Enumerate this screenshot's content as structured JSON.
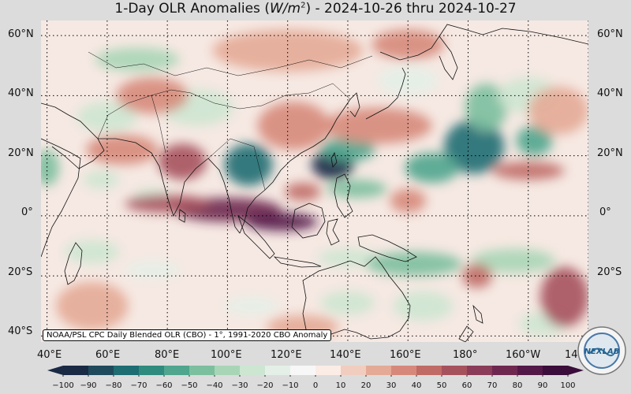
{
  "title": {
    "prefix": "1-Day OLR Anomalies (",
    "unit_var": "W/m",
    "unit_exp": "2",
    "suffix": ") - 2024-10-26 thru 2024-10-27"
  },
  "credit": "NOAA/PSL CPC Daily Blended OLR (CBO) - 1°, 1991-2020 CBO Anomaly",
  "lat_labels": [
    "60°N",
    "40°N",
    "20°N",
    "0°",
    "20°S",
    "40°S"
  ],
  "lon_labels": [
    "40°E",
    "60°E",
    "80°E",
    "100°E",
    "120°E",
    "140°E",
    "160°E",
    "180°",
    "160°W",
    "14"
  ],
  "logo_text": "NEXLAB",
  "colorbar": {
    "ticks": [
      "−100",
      "−90",
      "−80",
      "−70",
      "−60",
      "−50",
      "−40",
      "−30",
      "−20",
      "−10",
      "0",
      "10",
      "20",
      "30",
      "40",
      "50",
      "60",
      "70",
      "80",
      "90",
      "100"
    ],
    "colors": [
      "#1a2a45",
      "#1f4a5c",
      "#1d6d72",
      "#2e8b7e",
      "#4fa58e",
      "#7cbf9f",
      "#a8d5b6",
      "#cde6d2",
      "#e4f0e7",
      "#f7f7f7",
      "#fbece6",
      "#f1cdbf",
      "#e4aa96",
      "#d6897a",
      "#c06b66",
      "#a6525d",
      "#8a3c58",
      "#6e2850",
      "#531848",
      "#3a0d3a"
    ]
  },
  "map": {
    "lon_range": [
      38,
      220
    ],
    "lat_range": [
      -42,
      65
    ],
    "gridlines": "dotted",
    "anomalies": [
      {
        "kind": "wet",
        "lon": 135,
        "lat": 17,
        "rx": 7,
        "ry": 5,
        "v": -95
      },
      {
        "kind": "wet",
        "lon": 140,
        "lat": 22,
        "rx": 9,
        "ry": 4,
        "v": -60
      },
      {
        "kind": "wet",
        "lon": 143,
        "lat": 9,
        "rx": 10,
        "ry": 3,
        "v": -50
      },
      {
        "kind": "wet",
        "lon": 107,
        "lat": 17,
        "rx": 8,
        "ry": 7,
        "v": -75
      },
      {
        "kind": "wet",
        "lon": 182,
        "lat": 23,
        "rx": 10,
        "ry": 9,
        "v": -80
      },
      {
        "kind": "wet",
        "lon": 168,
        "lat": 16,
        "rx": 9,
        "ry": 5,
        "v": -60
      },
      {
        "kind": "wet",
        "lon": 202,
        "lat": 25,
        "rx": 6,
        "ry": 5,
        "v": -55
      },
      {
        "kind": "wet",
        "lon": 186,
        "lat": 36,
        "rx": 7,
        "ry": 8,
        "v": -45
      },
      {
        "kind": "wet",
        "lon": 200,
        "lat": 40,
        "rx": 10,
        "ry": 6,
        "v": -30
      },
      {
        "kind": "wet",
        "lon": 70,
        "lat": 52,
        "rx": 14,
        "ry": 4,
        "v": -35
      },
      {
        "kind": "wet",
        "lon": 90,
        "lat": 36,
        "rx": 12,
        "ry": 6,
        "v": -30
      },
      {
        "kind": "wet",
        "lon": 60,
        "lat": 33,
        "rx": 10,
        "ry": 5,
        "v": -25
      },
      {
        "kind": "wet",
        "lon": 40,
        "lat": 16,
        "rx": 4,
        "ry": 6,
        "v": -45
      },
      {
        "kind": "wet",
        "lon": 58,
        "lat": 12,
        "rx": 6,
        "ry": 3,
        "v": -30
      },
      {
        "kind": "wet",
        "lon": 75,
        "lat": 7,
        "rx": 6,
        "ry": 2,
        "v": -30
      },
      {
        "kind": "wet",
        "lon": 55,
        "lat": -12,
        "rx": 9,
        "ry": 4,
        "v": -25
      },
      {
        "kind": "wet",
        "lon": 75,
        "lat": -18,
        "rx": 9,
        "ry": 3,
        "v": -20
      },
      {
        "kind": "wet",
        "lon": 140,
        "lat": -14,
        "rx": 10,
        "ry": 3,
        "v": -30
      },
      {
        "kind": "wet",
        "lon": 162,
        "lat": -16,
        "rx": 16,
        "ry": 4,
        "v": -45
      },
      {
        "kind": "wet",
        "lon": 195,
        "lat": -15,
        "rx": 14,
        "ry": 4,
        "v": -35
      },
      {
        "kind": "wet",
        "lon": 165,
        "lat": -30,
        "rx": 10,
        "ry": 5,
        "v": -30
      },
      {
        "kind": "wet",
        "lon": 140,
        "lat": -29,
        "rx": 9,
        "ry": 4,
        "v": -25
      },
      {
        "kind": "wet",
        "lon": 108,
        "lat": -30,
        "rx": 9,
        "ry": 3,
        "v": -20
      },
      {
        "kind": "wet",
        "lon": 205,
        "lat": -36,
        "rx": 8,
        "ry": 4,
        "v": -25
      },
      {
        "kind": "wet",
        "lon": 160,
        "lat": 45,
        "rx": 10,
        "ry": 5,
        "v": -20
      },
      {
        "kind": "dry",
        "lon": 100,
        "lat": 2,
        "rx": 18,
        "ry": 4,
        "v": 70
      },
      {
        "kind": "dry",
        "lon": 118,
        "lat": -2,
        "rx": 12,
        "ry": 3,
        "v": 80
      },
      {
        "kind": "dry",
        "lon": 80,
        "lat": 4,
        "rx": 14,
        "ry": 3,
        "v": 55
      },
      {
        "kind": "dry",
        "lon": 85,
        "lat": 18,
        "rx": 8,
        "ry": 6,
        "v": 50
      },
      {
        "kind": "dry",
        "lon": 65,
        "lat": 22,
        "rx": 12,
        "ry": 5,
        "v": 35
      },
      {
        "kind": "dry",
        "lon": 122,
        "lat": 30,
        "rx": 12,
        "ry": 8,
        "v": 35
      },
      {
        "kind": "dry",
        "lon": 150,
        "lat": 30,
        "rx": 18,
        "ry": 6,
        "v": 30
      },
      {
        "kind": "dry",
        "lon": 75,
        "lat": 40,
        "rx": 12,
        "ry": 6,
        "v": 35
      },
      {
        "kind": "dry",
        "lon": 120,
        "lat": 55,
        "rx": 25,
        "ry": 7,
        "v": 25
      },
      {
        "kind": "dry",
        "lon": 160,
        "lat": 57,
        "rx": 12,
        "ry": 5,
        "v": 30
      },
      {
        "kind": "dry",
        "lon": 200,
        "lat": 15,
        "rx": 12,
        "ry": 3,
        "v": 45
      },
      {
        "kind": "dry",
        "lon": 210,
        "lat": 35,
        "rx": 10,
        "ry": 8,
        "v": 25
      },
      {
        "kind": "dry",
        "lon": 183,
        "lat": -20,
        "rx": 5,
        "ry": 4,
        "v": 45
      },
      {
        "kind": "dry",
        "lon": 212,
        "lat": -27,
        "rx": 8,
        "ry": 10,
        "v": 55
      },
      {
        "kind": "dry",
        "lon": 125,
        "lat": -37,
        "rx": 12,
        "ry": 4,
        "v": 25
      },
      {
        "kind": "dry",
        "lon": 55,
        "lat": -30,
        "rx": 12,
        "ry": 8,
        "v": 25
      },
      {
        "kind": "dry",
        "lon": 160,
        "lat": 5,
        "rx": 6,
        "ry": 4,
        "v": 35
      },
      {
        "kind": "dry",
        "lon": 125,
        "lat": 8,
        "rx": 6,
        "ry": 3,
        "v": 40
      }
    ]
  }
}
